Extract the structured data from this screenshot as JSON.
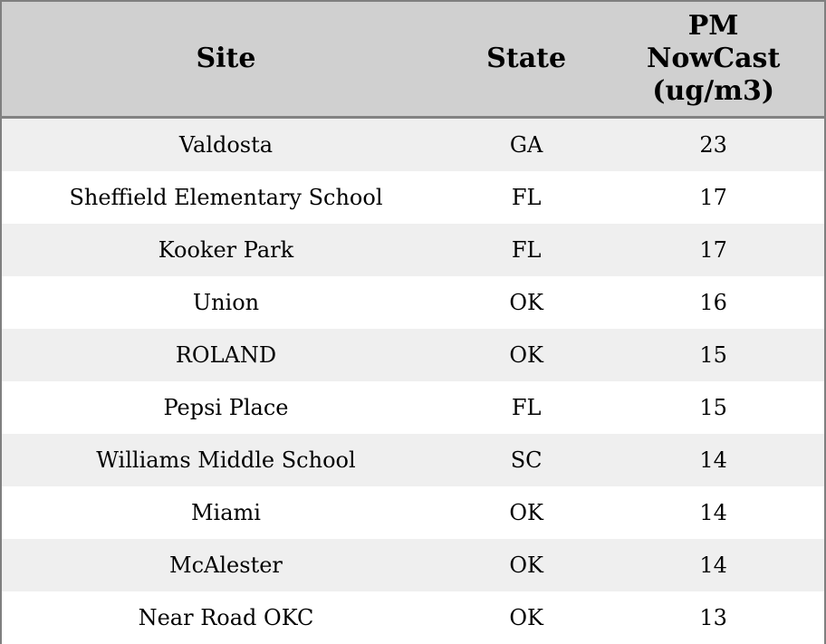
{
  "colors": {
    "header_bg": "#d0d0d0",
    "stripe_row_bg": "#efefef",
    "plain_row_bg": "#ffffff",
    "outer_border": "#7f7f7f",
    "header_divider": "#828282",
    "text": "#000000"
  },
  "table": {
    "header": {
      "site": "Site",
      "state": "State",
      "pm": "PM\nNowCast\n(ug/m3)"
    }
  },
  "rows": [
    {
      "site": "Valdosta",
      "state": "GA",
      "value": "23"
    },
    {
      "site": "Sheffield Elementary School",
      "state": "FL",
      "value": "17"
    },
    {
      "site": "Kooker Park",
      "state": "FL",
      "value": "17"
    },
    {
      "site": "Union",
      "state": "OK",
      "value": "16"
    },
    {
      "site": "ROLAND",
      "state": "OK",
      "value": "15"
    },
    {
      "site": "Pepsi Place",
      "state": "FL",
      "value": "15"
    },
    {
      "site": "Williams Middle School",
      "state": "SC",
      "value": "14"
    },
    {
      "site": "Miami",
      "state": "OK",
      "value": "14"
    },
    {
      "site": "McAlester",
      "state": "OK",
      "value": "14"
    },
    {
      "site": "Near Road OKC",
      "state": "OK",
      "value": "13"
    }
  ],
  "chart_data": {
    "type": "table",
    "title": "",
    "columns": [
      "Site",
      "State",
      "PM NowCast (ug/m3)"
    ],
    "rows": [
      [
        "Valdosta",
        "GA",
        23
      ],
      [
        "Sheffield Elementary School",
        "FL",
        17
      ],
      [
        "Kooker Park",
        "FL",
        17
      ],
      [
        "Union",
        "OK",
        16
      ],
      [
        "ROLAND",
        "OK",
        15
      ],
      [
        "Pepsi Place",
        "FL",
        15
      ],
      [
        "Williams Middle School",
        "SC",
        14
      ],
      [
        "Miami",
        "OK",
        14
      ],
      [
        "McAlester",
        "OK",
        14
      ],
      [
        "Near Road OKC",
        "OK",
        13
      ]
    ],
    "layout_hints": {
      "striped_rows": true,
      "header_bold": true,
      "all_cells_centered": true
    }
  }
}
